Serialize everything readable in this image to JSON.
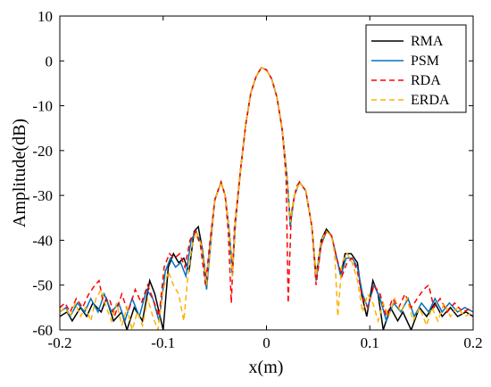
{
  "chart_data": {
    "type": "line",
    "title": "",
    "xlabel": "x(m)",
    "ylabel": "Amplitude(dB)",
    "xlim": [
      -0.2,
      0.2
    ],
    "ylim": [
      -60,
      10
    ],
    "x_ticks": [
      -0.2,
      -0.1,
      0,
      0.1,
      0.2
    ],
    "x_tick_labels": [
      "-0.2",
      "-0.1",
      "0",
      "0.1",
      "0.2"
    ],
    "y_ticks": [
      10,
      0,
      -10,
      -20,
      -30,
      -40,
      -50,
      -60
    ],
    "y_tick_labels": [
      "10",
      "0",
      "-10",
      "-20",
      "-30",
      "-40",
      "-50",
      "-60"
    ],
    "grid": false,
    "legend_position": "top-right",
    "series": [
      {
        "name": "RMA",
        "color": "#000000",
        "dash": "solid",
        "points": [
          [
            -0.2,
            -57
          ],
          [
            -0.193,
            -56
          ],
          [
            -0.188,
            -58
          ],
          [
            -0.18,
            -55
          ],
          [
            -0.174,
            -57
          ],
          [
            -0.168,
            -54
          ],
          [
            -0.16,
            -56
          ],
          [
            -0.155,
            -53
          ],
          [
            -0.148,
            -58
          ],
          [
            -0.14,
            -56
          ],
          [
            -0.135,
            -60
          ],
          [
            -0.128,
            -55
          ],
          [
            -0.12,
            -58
          ],
          [
            -0.113,
            -49
          ],
          [
            -0.108,
            -52
          ],
          [
            -0.1,
            -60
          ],
          [
            -0.095,
            -46
          ],
          [
            -0.09,
            -43
          ],
          [
            -0.085,
            -45
          ],
          [
            -0.08,
            -44
          ],
          [
            -0.075,
            -47
          ],
          [
            -0.07,
            -38
          ],
          [
            -0.066,
            -37
          ],
          [
            -0.062,
            -42
          ],
          [
            -0.058,
            -50
          ],
          [
            -0.054,
            -40
          ],
          [
            -0.05,
            -31
          ],
          [
            -0.044,
            -27
          ],
          [
            -0.04,
            -30
          ],
          [
            -0.036,
            -38
          ],
          [
            -0.033,
            -47
          ],
          [
            -0.03,
            -36
          ],
          [
            -0.025,
            -24
          ],
          [
            -0.02,
            -14
          ],
          [
            -0.015,
            -7
          ],
          [
            -0.01,
            -3.5
          ],
          [
            -0.005,
            -1.5
          ],
          [
            0,
            -2
          ],
          [
            0.005,
            -4
          ],
          [
            0.01,
            -8
          ],
          [
            0.015,
            -15
          ],
          [
            0.02,
            -26
          ],
          [
            0.023,
            -36
          ],
          [
            0.027,
            -30
          ],
          [
            0.032,
            -27
          ],
          [
            0.038,
            -29
          ],
          [
            0.044,
            -37
          ],
          [
            0.048,
            -48
          ],
          [
            0.053,
            -40
          ],
          [
            0.058,
            -37.5
          ],
          [
            0.063,
            -39
          ],
          [
            0.068,
            -44
          ],
          [
            0.072,
            -48
          ],
          [
            0.076,
            -43
          ],
          [
            0.082,
            -43
          ],
          [
            0.088,
            -45
          ],
          [
            0.092,
            -52
          ],
          [
            0.097,
            -57
          ],
          [
            0.103,
            -49
          ],
          [
            0.108,
            -52
          ],
          [
            0.113,
            -60
          ],
          [
            0.12,
            -55
          ],
          [
            0.127,
            -58
          ],
          [
            0.132,
            -56
          ],
          [
            0.14,
            -60
          ],
          [
            0.148,
            -55
          ],
          [
            0.155,
            -57
          ],
          [
            0.163,
            -54
          ],
          [
            0.17,
            -57
          ],
          [
            0.178,
            -55
          ],
          [
            0.185,
            -57
          ],
          [
            0.193,
            -56
          ],
          [
            0.2,
            -57
          ]
        ]
      },
      {
        "name": "PSM",
        "color": "#0072bd",
        "dash": "solid",
        "points": [
          [
            -0.2,
            -56
          ],
          [
            -0.194,
            -55
          ],
          [
            -0.19,
            -57
          ],
          [
            -0.183,
            -54
          ],
          [
            -0.176,
            -56
          ],
          [
            -0.17,
            -53
          ],
          [
            -0.163,
            -56
          ],
          [
            -0.157,
            -52
          ],
          [
            -0.15,
            -56
          ],
          [
            -0.143,
            -54
          ],
          [
            -0.137,
            -58
          ],
          [
            -0.13,
            -53
          ],
          [
            -0.123,
            -57
          ],
          [
            -0.116,
            -51
          ],
          [
            -0.11,
            -53
          ],
          [
            -0.104,
            -58
          ],
          [
            -0.098,
            -47
          ],
          [
            -0.093,
            -44
          ],
          [
            -0.088,
            -46
          ],
          [
            -0.083,
            -45
          ],
          [
            -0.078,
            -48
          ],
          [
            -0.073,
            -40
          ],
          [
            -0.068,
            -38
          ],
          [
            -0.063,
            -41
          ],
          [
            -0.058,
            -51
          ],
          [
            -0.054,
            -41
          ],
          [
            -0.05,
            -31
          ],
          [
            -0.044,
            -27
          ],
          [
            -0.04,
            -30
          ],
          [
            -0.036,
            -38
          ],
          [
            -0.033,
            -48
          ],
          [
            -0.03,
            -36
          ],
          [
            -0.025,
            -24
          ],
          [
            -0.02,
            -14
          ],
          [
            -0.015,
            -7
          ],
          [
            -0.01,
            -3.5
          ],
          [
            -0.005,
            -1.5
          ],
          [
            0,
            -2
          ],
          [
            0.005,
            -4
          ],
          [
            0.01,
            -8
          ],
          [
            0.015,
            -15
          ],
          [
            0.02,
            -26
          ],
          [
            0.023,
            -37
          ],
          [
            0.027,
            -30
          ],
          [
            0.032,
            -27
          ],
          [
            0.038,
            -29
          ],
          [
            0.044,
            -37
          ],
          [
            0.048,
            -49
          ],
          [
            0.053,
            -41
          ],
          [
            0.058,
            -38
          ],
          [
            0.063,
            -39
          ],
          [
            0.068,
            -44
          ],
          [
            0.072,
            -48
          ],
          [
            0.077,
            -44
          ],
          [
            0.083,
            -44
          ],
          [
            0.088,
            -46
          ],
          [
            0.093,
            -52
          ],
          [
            0.098,
            -55
          ],
          [
            0.104,
            -50
          ],
          [
            0.11,
            -53
          ],
          [
            0.116,
            -58
          ],
          [
            0.123,
            -54
          ],
          [
            0.13,
            -56
          ],
          [
            0.137,
            -53
          ],
          [
            0.143,
            -57
          ],
          [
            0.15,
            -54
          ],
          [
            0.157,
            -56
          ],
          [
            0.163,
            -53
          ],
          [
            0.17,
            -56
          ],
          [
            0.177,
            -54
          ],
          [
            0.185,
            -56
          ],
          [
            0.192,
            -55
          ],
          [
            0.2,
            -56
          ]
        ]
      },
      {
        "name": "RDA",
        "color": "#ff0000",
        "dash": "dashed",
        "points": [
          [
            -0.2,
            -55
          ],
          [
            -0.195,
            -54
          ],
          [
            -0.19,
            -56
          ],
          [
            -0.184,
            -53
          ],
          [
            -0.178,
            -55
          ],
          [
            -0.172,
            -52
          ],
          [
            -0.166,
            -50
          ],
          [
            -0.162,
            -49
          ],
          [
            -0.158,
            -54
          ],
          [
            -0.152,
            -53
          ],
          [
            -0.147,
            -57
          ],
          [
            -0.14,
            -52
          ],
          [
            -0.134,
            -56
          ],
          [
            -0.127,
            -51
          ],
          [
            -0.121,
            -54
          ],
          [
            -0.115,
            -50
          ],
          [
            -0.11,
            -53
          ],
          [
            -0.104,
            -57
          ],
          [
            -0.099,
            -46
          ],
          [
            -0.094,
            -43
          ],
          [
            -0.089,
            -44
          ],
          [
            -0.084,
            -43
          ],
          [
            -0.079,
            -46
          ],
          [
            -0.074,
            -40
          ],
          [
            -0.069,
            -38
          ],
          [
            -0.064,
            -41
          ],
          [
            -0.059,
            -50
          ],
          [
            -0.055,
            -41
          ],
          [
            -0.05,
            -31
          ],
          [
            -0.044,
            -27
          ],
          [
            -0.04,
            -30
          ],
          [
            -0.037,
            -38
          ],
          [
            -0.034,
            -54
          ],
          [
            -0.031,
            -37
          ],
          [
            -0.025,
            -24
          ],
          [
            -0.02,
            -14
          ],
          [
            -0.015,
            -7
          ],
          [
            -0.01,
            -3.5
          ],
          [
            -0.005,
            -1.5
          ],
          [
            0,
            -2
          ],
          [
            0.005,
            -4
          ],
          [
            0.01,
            -8
          ],
          [
            0.015,
            -15
          ],
          [
            0.019,
            -26
          ],
          [
            0.021,
            -54
          ],
          [
            0.024,
            -34
          ],
          [
            0.029,
            -28
          ],
          [
            0.032,
            -27
          ],
          [
            0.038,
            -29
          ],
          [
            0.044,
            -37
          ],
          [
            0.048,
            -50
          ],
          [
            0.053,
            -41
          ],
          [
            0.058,
            -38
          ],
          [
            0.063,
            -39
          ],
          [
            0.068,
            -44
          ],
          [
            0.073,
            -48
          ],
          [
            0.078,
            -45
          ],
          [
            0.083,
            -44
          ],
          [
            0.088,
            -47
          ],
          [
            0.093,
            -53
          ],
          [
            0.098,
            -55
          ],
          [
            0.104,
            -50
          ],
          [
            0.11,
            -52
          ],
          [
            0.116,
            -57
          ],
          [
            0.122,
            -53
          ],
          [
            0.128,
            -55
          ],
          [
            0.134,
            -52
          ],
          [
            0.14,
            -55
          ],
          [
            0.146,
            -53
          ],
          [
            0.152,
            -51
          ],
          [
            0.157,
            -50
          ],
          [
            0.162,
            -55
          ],
          [
            0.168,
            -53
          ],
          [
            0.175,
            -56
          ],
          [
            0.182,
            -54
          ],
          [
            0.19,
            -56
          ],
          [
            0.2,
            -55
          ]
        ]
      },
      {
        "name": "ERDA",
        "color": "#ffb000",
        "dash": "dashed",
        "points": [
          [
            -0.2,
            -56
          ],
          [
            -0.195,
            -55
          ],
          [
            -0.19,
            -57
          ],
          [
            -0.185,
            -54
          ],
          [
            -0.18,
            -57
          ],
          [
            -0.175,
            -55
          ],
          [
            -0.17,
            -58
          ],
          [
            -0.165,
            -53
          ],
          [
            -0.16,
            -51
          ],
          [
            -0.155,
            -55
          ],
          [
            -0.15,
            -58
          ],
          [
            -0.145,
            -54
          ],
          [
            -0.14,
            -59
          ],
          [
            -0.135,
            -55
          ],
          [
            -0.13,
            -60
          ],
          [
            -0.125,
            -56
          ],
          [
            -0.12,
            -59
          ],
          [
            -0.115,
            -53
          ],
          [
            -0.11,
            -57
          ],
          [
            -0.105,
            -60
          ],
          [
            -0.1,
            -51
          ],
          [
            -0.095,
            -47
          ],
          [
            -0.09,
            -50
          ],
          [
            -0.085,
            -52
          ],
          [
            -0.08,
            -58
          ],
          [
            -0.076,
            -48
          ],
          [
            -0.072,
            -41
          ],
          [
            -0.068,
            -38
          ],
          [
            -0.063,
            -41
          ],
          [
            -0.058,
            -50
          ],
          [
            -0.054,
            -41
          ],
          [
            -0.05,
            -31
          ],
          [
            -0.044,
            -27
          ],
          [
            -0.04,
            -30
          ],
          [
            -0.036,
            -38
          ],
          [
            -0.033,
            -48
          ],
          [
            -0.03,
            -36
          ],
          [
            -0.025,
            -24
          ],
          [
            -0.02,
            -14
          ],
          [
            -0.015,
            -7
          ],
          [
            -0.01,
            -3.5
          ],
          [
            -0.005,
            -1.5
          ],
          [
            0,
            -2
          ],
          [
            0.005,
            -4
          ],
          [
            0.01,
            -8
          ],
          [
            0.015,
            -15
          ],
          [
            0.02,
            -26
          ],
          [
            0.023,
            -36
          ],
          [
            0.027,
            -30
          ],
          [
            0.032,
            -27
          ],
          [
            0.038,
            -29
          ],
          [
            0.044,
            -37
          ],
          [
            0.048,
            -48
          ],
          [
            0.053,
            -40
          ],
          [
            0.058,
            -38
          ],
          [
            0.063,
            -39
          ],
          [
            0.066,
            -43
          ],
          [
            0.069,
            -57
          ],
          [
            0.073,
            -45
          ],
          [
            0.078,
            -43
          ],
          [
            0.083,
            -45
          ],
          [
            0.088,
            -49
          ],
          [
            0.093,
            -56
          ],
          [
            0.098,
            -52
          ],
          [
            0.103,
            -54
          ],
          [
            0.108,
            -58
          ],
          [
            0.113,
            -54
          ],
          [
            0.118,
            -57
          ],
          [
            0.124,
            -53
          ],
          [
            0.13,
            -56
          ],
          [
            0.136,
            -53
          ],
          [
            0.142,
            -58
          ],
          [
            0.148,
            -55
          ],
          [
            0.155,
            -59
          ],
          [
            0.16,
            -55
          ],
          [
            0.166,
            -58
          ],
          [
            0.172,
            -54
          ],
          [
            0.178,
            -57
          ],
          [
            0.185,
            -55
          ],
          [
            0.192,
            -57
          ],
          [
            0.2,
            -56
          ]
        ]
      }
    ]
  }
}
